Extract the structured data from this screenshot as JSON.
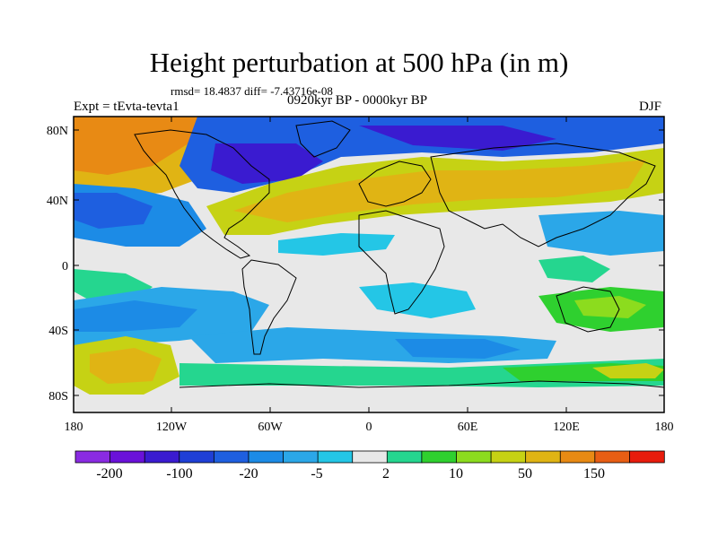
{
  "title": "Height perturbation at 500 hPa (in m)",
  "stats": "rmsd= 18.4837 diff= -7.43716e-08",
  "experiment": "Expt = tEvta-tevta1",
  "period": "0920kyr BP - 0000kyr BP",
  "season": "DJF",
  "axes": {
    "lat_labels": [
      "80N",
      "40N",
      "0",
      "40S",
      "80S"
    ],
    "lat_values": [
      80,
      40,
      0,
      -40,
      -80
    ],
    "lon_labels": [
      "180",
      "120W",
      "60W",
      "0",
      "60E",
      "120E",
      "180"
    ],
    "lon_values": [
      -180,
      -120,
      -60,
      0,
      60,
      120,
      180
    ]
  },
  "colorbar": {
    "colors": [
      "#8a2be2",
      "#6a11d9",
      "#3a1bd0",
      "#1f3fd6",
      "#1e5fe0",
      "#1c8be6",
      "#2ba7e8",
      "#24c6e6",
      "#e8e8e8",
      "#25d68f",
      "#2fd02f",
      "#8cdc1e",
      "#c6d214",
      "#e0b414",
      "#e88a14",
      "#e85e14",
      "#e81c0c"
    ],
    "labels": [
      "-200",
      "-100",
      "-20",
      "-5",
      "2",
      "10",
      "50",
      "150"
    ]
  },
  "map_fields": {
    "colors": {
      "deep_blue": "#1f3fd6",
      "blue": "#1e5fe0",
      "mid_blue": "#1c8be6",
      "light_blue": "#2ba7e8",
      "cyan": "#24c6e6",
      "neutral": "#e8e8e8",
      "green_light": "#25d68f",
      "green": "#2fd02f",
      "yellow_green": "#8cdc1e",
      "yellow": "#c6d214",
      "gold": "#e0b414",
      "orange": "#e88a14",
      "dark_blue": "#3a1bd0"
    }
  }
}
